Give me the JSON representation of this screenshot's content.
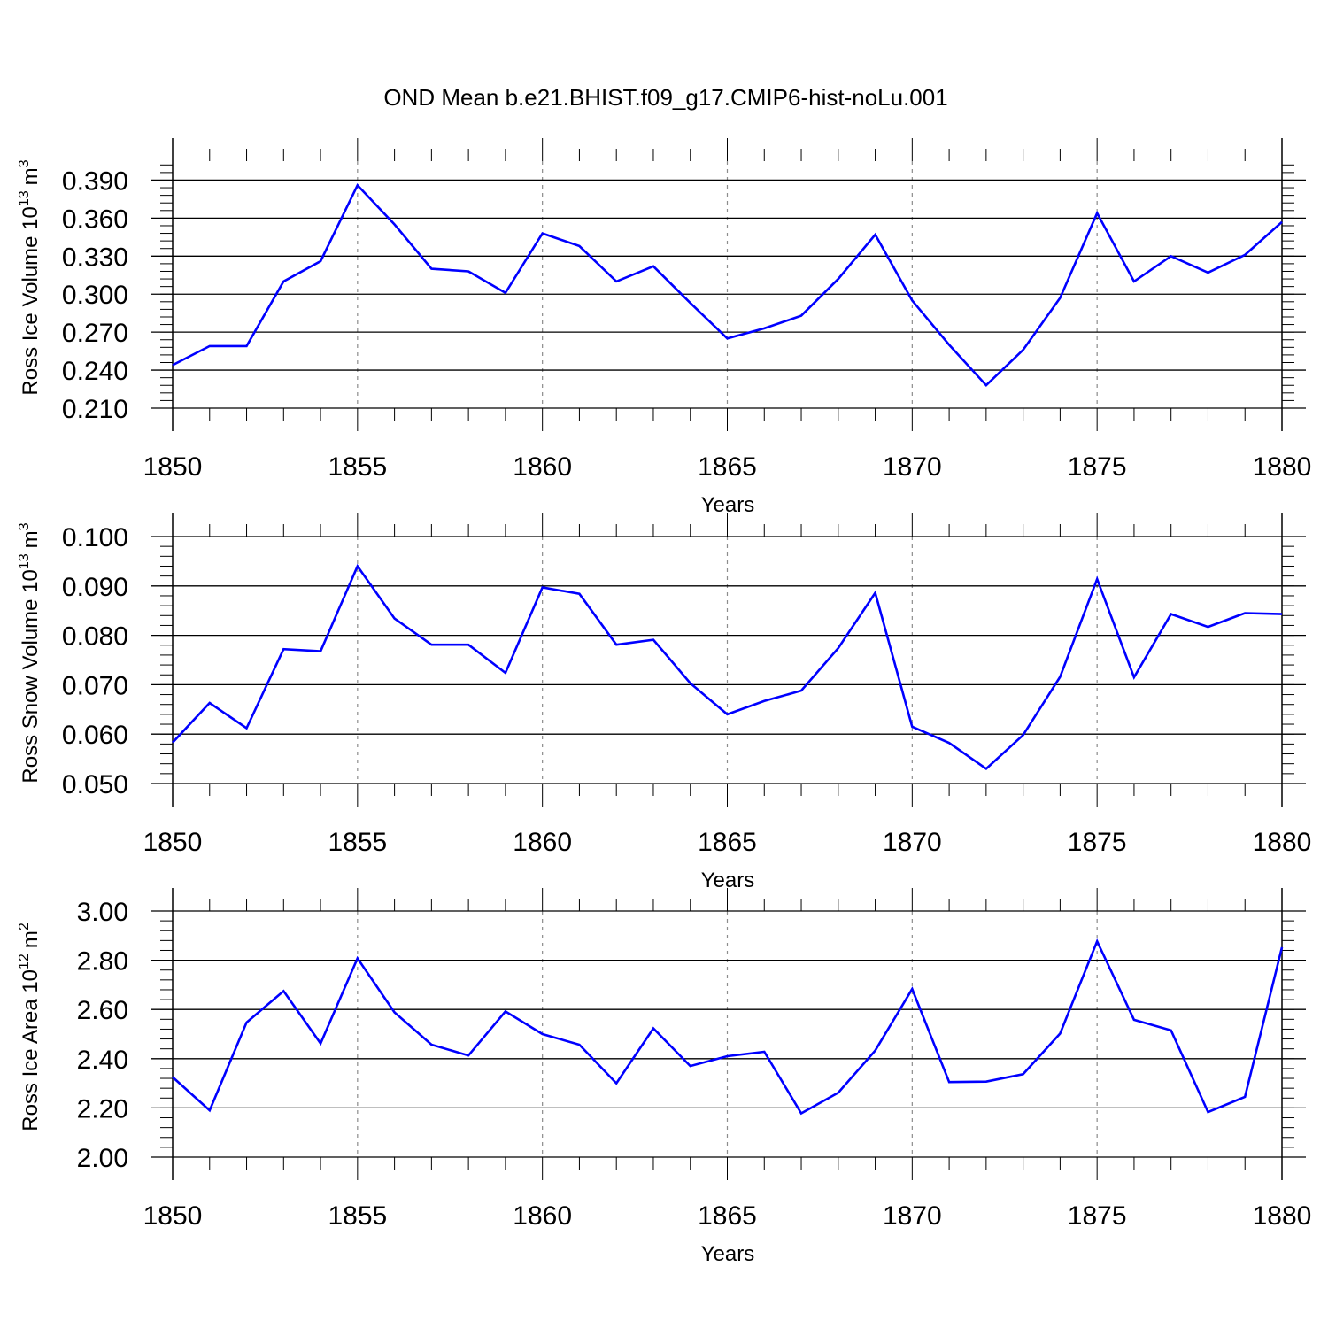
{
  "title": "OND Mean b.e21.BHIST.f09_g17.CMIP6-hist-noLu.001",
  "colors": {
    "series": "#0000ff",
    "axis": "#000000",
    "grid": "#8c8c8c"
  },
  "chart_data": [
    {
      "type": "line",
      "ylabel": "Ross Ice Volume 10",
      "ylabel_sup": "13",
      "ylabel_unit": "m",
      "ylabel_unit_sup": "3",
      "xlabel": "Years",
      "xlim": [
        1850,
        1880
      ],
      "ylim": [
        0.21,
        0.405
      ],
      "yticks": [
        0.21,
        0.24,
        0.27,
        0.3,
        0.33,
        0.36,
        0.39
      ],
      "ytick_labels": [
        "0.210",
        "0.240",
        "0.270",
        "0.300",
        "0.330",
        "0.360",
        "0.390"
      ],
      "ytick_minor_step": 0.006,
      "xticks": [
        1850,
        1855,
        1860,
        1865,
        1870,
        1875,
        1880
      ],
      "xtick_labels": [
        "1850",
        "1855",
        "1860",
        "1865",
        "1870",
        "1875",
        "1880"
      ],
      "grid": "vertical dashed at major x ticks",
      "x": [
        1850,
        1851,
        1852,
        1853,
        1854,
        1855,
        1856,
        1857,
        1858,
        1859,
        1860,
        1861,
        1862,
        1863,
        1864,
        1865,
        1866,
        1867,
        1868,
        1869,
        1870,
        1871,
        1872,
        1873,
        1874,
        1875,
        1876,
        1877,
        1878,
        1879,
        1880
      ],
      "values": [
        0.244,
        0.259,
        0.259,
        0.31,
        0.326,
        0.386,
        0.355,
        0.32,
        0.318,
        0.301,
        0.348,
        0.338,
        0.31,
        0.322,
        0.293,
        0.265,
        0.273,
        0.283,
        0.312,
        0.347,
        0.295,
        0.26,
        0.228,
        0.256,
        0.297,
        0.364,
        0.31,
        0.33,
        0.317,
        0.331,
        0.357
      ]
    },
    {
      "type": "line",
      "ylabel": "Ross Snow Volume 10",
      "ylabel_sup": "13",
      "ylabel_unit": "m",
      "ylabel_unit_sup": "3",
      "xlabel": "Years",
      "xlim": [
        1850,
        1880
      ],
      "ylim": [
        0.05,
        0.1
      ],
      "yticks": [
        0.05,
        0.06,
        0.07,
        0.08,
        0.09,
        0.1
      ],
      "ytick_labels": [
        "0.050",
        "0.060",
        "0.070",
        "0.080",
        "0.090",
        "0.100"
      ],
      "ytick_minor_step": 0.002,
      "xticks": [
        1850,
        1855,
        1860,
        1865,
        1870,
        1875,
        1880
      ],
      "xtick_labels": [
        "1850",
        "1855",
        "1860",
        "1865",
        "1870",
        "1875",
        "1880"
      ],
      "grid": "vertical dashed at major x ticks",
      "x": [
        1850,
        1851,
        1852,
        1853,
        1854,
        1855,
        1856,
        1857,
        1858,
        1859,
        1860,
        1861,
        1862,
        1863,
        1864,
        1865,
        1866,
        1867,
        1868,
        1869,
        1870,
        1871,
        1872,
        1873,
        1874,
        1875,
        1876,
        1877,
        1878,
        1879,
        1880
      ],
      "values": [
        0.0583,
        0.0663,
        0.0612,
        0.0772,
        0.0768,
        0.094,
        0.0834,
        0.0781,
        0.0781,
        0.0724,
        0.0897,
        0.0884,
        0.0781,
        0.0791,
        0.0703,
        0.064,
        0.0667,
        0.0688,
        0.0774,
        0.0886,
        0.0615,
        0.0582,
        0.053,
        0.0598,
        0.0716,
        0.0914,
        0.0715,
        0.0843,
        0.0817,
        0.0845,
        0.0843
      ]
    },
    {
      "type": "line",
      "ylabel": "Ross Ice Area 10",
      "ylabel_sup": "12",
      "ylabel_unit": "m",
      "ylabel_unit_sup": "2",
      "xlabel": "Years",
      "xlim": [
        1850,
        1880
      ],
      "ylim": [
        2.0,
        3.0
      ],
      "yticks": [
        2.0,
        2.2,
        2.4,
        2.6,
        2.8,
        3.0
      ],
      "ytick_labels": [
        "2.00",
        "2.20",
        "2.40",
        "2.60",
        "2.80",
        "3.00"
      ],
      "ytick_minor_step": 0.04,
      "xticks": [
        1850,
        1855,
        1860,
        1865,
        1870,
        1875,
        1880
      ],
      "xtick_labels": [
        "1850",
        "1855",
        "1860",
        "1865",
        "1870",
        "1875",
        "1880"
      ],
      "grid": "vertical dashed at major x ticks",
      "x": [
        1850,
        1851,
        1852,
        1853,
        1854,
        1855,
        1856,
        1857,
        1858,
        1859,
        1860,
        1861,
        1862,
        1863,
        1864,
        1865,
        1866,
        1867,
        1868,
        1869,
        1870,
        1871,
        1872,
        1873,
        1874,
        1875,
        1876,
        1877,
        1878,
        1879,
        1880
      ],
      "values": [
        2.325,
        2.19,
        2.547,
        2.675,
        2.462,
        2.808,
        2.588,
        2.457,
        2.413,
        2.592,
        2.5,
        2.457,
        2.3,
        2.523,
        2.37,
        2.41,
        2.428,
        2.178,
        2.262,
        2.433,
        2.683,
        2.305,
        2.307,
        2.337,
        2.502,
        2.877,
        2.558,
        2.515,
        2.183,
        2.245,
        2.853
      ]
    }
  ]
}
